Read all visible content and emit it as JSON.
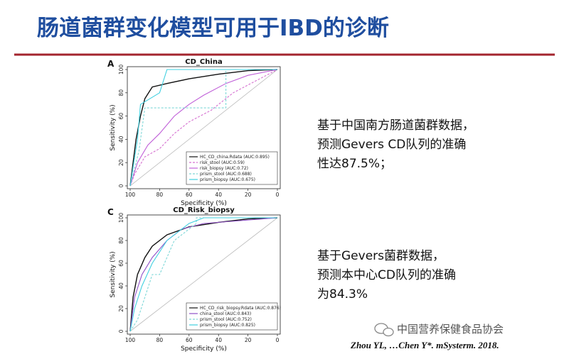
{
  "title": "肠道菌群变化模型可用于IBD的诊断",
  "notes": [
    {
      "lines": [
        "基于中国南方肠道菌群数据，",
        "预测Gevers CD队列的准确",
        "性达87.5%；"
      ]
    },
    {
      "lines": [
        "基于Gevers菌群数据，",
        "预测本中心CD队列的准确",
        "为84.3%"
      ]
    }
  ],
  "watermark": "中国营养保健食品协会",
  "citation": "Zhou YL, …Chen Y*. mSysterm. 2018.",
  "chart_data": [
    {
      "type": "line",
      "panel": "A",
      "title": "CD_China",
      "x_label": "Specificity (%)",
      "y_label": "Sensitivity (%)",
      "xlim": [
        100,
        0
      ],
      "ylim": [
        0,
        100
      ],
      "xticks": [
        100,
        80,
        60,
        40,
        20,
        0
      ],
      "yticks": [
        0,
        20,
        40,
        60,
        80,
        100
      ],
      "legend": "bottom-right",
      "series": [
        {
          "name": "HC_CD_china.Rdata (AUC:0.895)",
          "color": "#111111",
          "dash": false,
          "x": [
            100,
            98,
            96,
            93,
            90,
            85,
            75,
            60,
            40,
            20,
            0
          ],
          "values": [
            0,
            20,
            40,
            60,
            75,
            85,
            88,
            92,
            96,
            99,
            100
          ]
        },
        {
          "name": "risk_stool (AUC:0.59)",
          "color": "#d56fd0",
          "dash": true,
          "x": [
            100,
            97,
            90,
            80,
            70,
            60,
            45,
            30,
            15,
            0
          ],
          "values": [
            0,
            10,
            25,
            32,
            45,
            55,
            65,
            80,
            90,
            100
          ]
        },
        {
          "name": "risk_biopsy (AUC:0.72)",
          "color": "#c060d8",
          "dash": false,
          "x": [
            100,
            95,
            88,
            80,
            70,
            60,
            50,
            35,
            20,
            0
          ],
          "values": [
            0,
            20,
            35,
            45,
            60,
            70,
            78,
            88,
            95,
            100
          ]
        },
        {
          "name": "prism_stool (AUC:0.688)",
          "color": "#7fd8d8",
          "dash": true,
          "x": [
            100,
            94,
            90,
            35,
            35,
            0
          ],
          "values": [
            0,
            30,
            67,
            67,
            100,
            100
          ]
        },
        {
          "name": "prism_biopsy (AUC:0.675)",
          "color": "#40d0e0",
          "dash": false,
          "x": [
            100,
            95,
            93,
            80,
            75,
            0
          ],
          "values": [
            0,
            40,
            70,
            80,
            100,
            100
          ]
        }
      ]
    },
    {
      "type": "line",
      "panel": "C",
      "title": "CD_Risk_biopsy",
      "x_label": "Specificity (%)",
      "y_label": "Sensitivity (%)",
      "xlim": [
        100,
        0
      ],
      "ylim": [
        0,
        100
      ],
      "xticks": [
        100,
        80,
        60,
        40,
        20,
        0
      ],
      "yticks": [
        0,
        20,
        40,
        60,
        80,
        100
      ],
      "legend": "bottom-right",
      "series": [
        {
          "name": "HC_CD_risk_biopsy.Rdata (AUC:0.876)",
          "color": "#111111",
          "dash": false,
          "x": [
            100,
            98,
            95,
            90,
            85,
            75,
            60,
            40,
            20,
            0
          ],
          "values": [
            0,
            30,
            50,
            65,
            75,
            85,
            92,
            96,
            99,
            100
          ]
        },
        {
          "name": "china_stool (AUC:0.843)",
          "color": "#9050c8",
          "dash": false,
          "x": [
            100,
            97,
            92,
            85,
            75,
            65,
            50,
            0
          ],
          "values": [
            0,
            30,
            50,
            65,
            80,
            90,
            95,
            100
          ]
        },
        {
          "name": "prism_stool (AUC:0.752)",
          "color": "#7fd8d8",
          "dash": true,
          "x": [
            100,
            95,
            90,
            85,
            80,
            70,
            55,
            55,
            0
          ],
          "values": [
            0,
            10,
            30,
            50,
            50,
            80,
            95,
            100,
            100
          ]
        },
        {
          "name": "prism_biopsy (AUC:0.825)",
          "color": "#40d0e0",
          "dash": false,
          "x": [
            100,
            97,
            92,
            85,
            75,
            60,
            50,
            0
          ],
          "values": [
            0,
            20,
            40,
            60,
            80,
            95,
            100,
            100
          ]
        }
      ]
    }
  ]
}
